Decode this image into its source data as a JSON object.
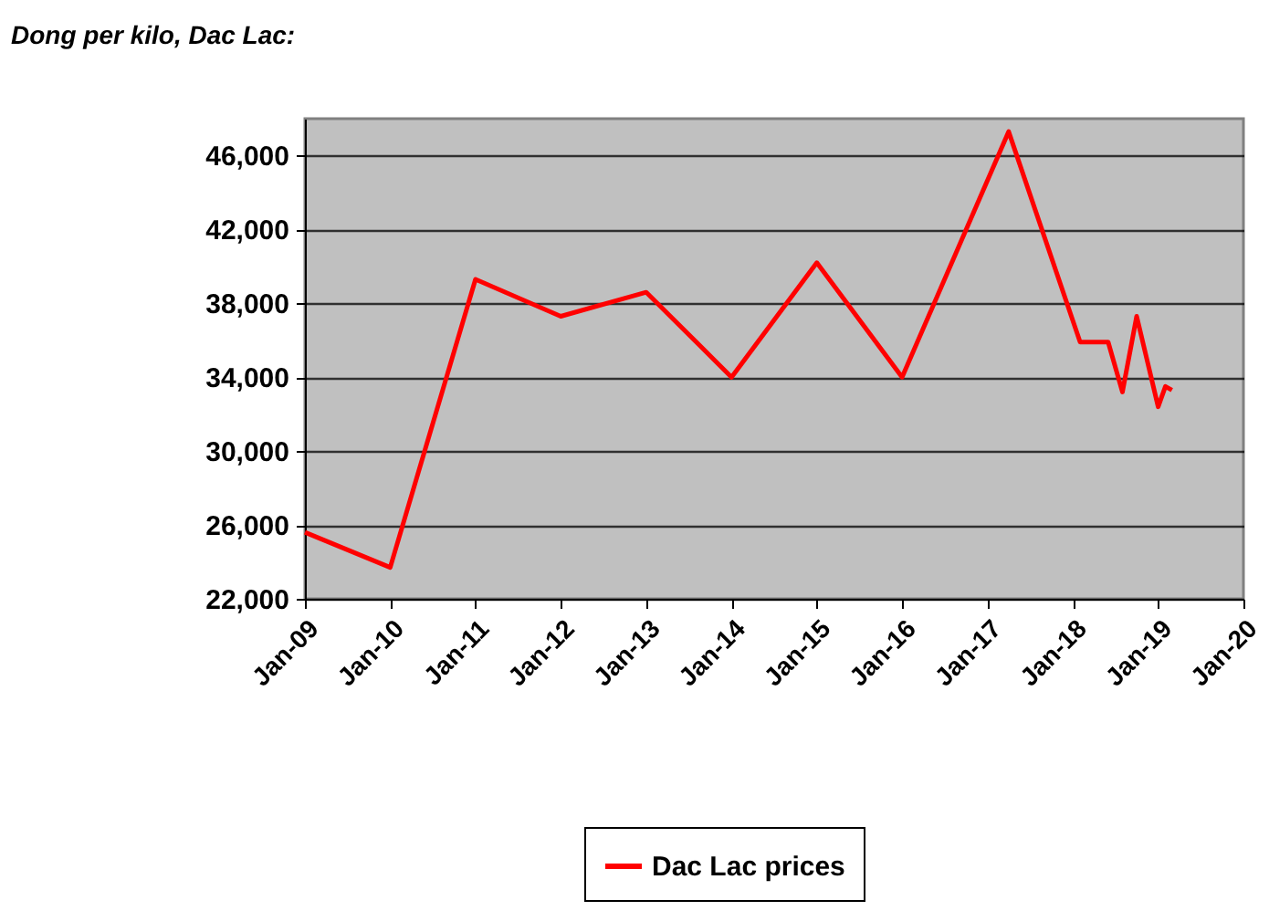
{
  "chart_data": {
    "type": "line",
    "title": "Dong per kilo, Dac Lac:",
    "x": [
      "2009-01",
      "2010-01",
      "2011-01",
      "2012-01",
      "2013-01",
      "2014-01",
      "2015-01",
      "2016-01",
      "2017-04",
      "2018-02",
      "2018-06",
      "2018-08",
      "2018-10",
      "2019-01",
      "2019-02",
      "2019-03"
    ],
    "series": [
      {
        "name": "Dac Lac prices",
        "color": "#ff0000",
        "values": [
          25600,
          23700,
          39300,
          37300,
          38600,
          34000,
          40200,
          34000,
          47300,
          35900,
          35900,
          33200,
          37300,
          32400,
          33500,
          33300
        ]
      }
    ],
    "xlim": [
      "2009-01",
      "2020-01"
    ],
    "xticks": [
      {
        "value": "2009-01",
        "label": "Jan-09"
      },
      {
        "value": "2010-01",
        "label": "Jan-10"
      },
      {
        "value": "2011-01",
        "label": "Jan-11"
      },
      {
        "value": "2012-01",
        "label": "Jan-12"
      },
      {
        "value": "2013-01",
        "label": "Jan-13"
      },
      {
        "value": "2014-01",
        "label": "Jan-14"
      },
      {
        "value": "2015-01",
        "label": "Jan-15"
      },
      {
        "value": "2016-01",
        "label": "Jan-16"
      },
      {
        "value": "2017-01",
        "label": "Jan-17"
      },
      {
        "value": "2018-01",
        "label": "Jan-18"
      },
      {
        "value": "2019-01",
        "label": "Jan-19"
      },
      {
        "value": "2020-01",
        "label": "Jan-20"
      }
    ],
    "ylim": [
      22000,
      48000
    ],
    "yticks": [
      {
        "value": 22000,
        "label": "22,000"
      },
      {
        "value": 26000,
        "label": "26,000"
      },
      {
        "value": 30000,
        "label": "30,000"
      },
      {
        "value": 34000,
        "label": "34,000"
      },
      {
        "value": 38000,
        "label": "38,000"
      },
      {
        "value": 42000,
        "label": "42,000"
      },
      {
        "value": 46000,
        "label": "46,000"
      }
    ],
    "grid": "y",
    "legend": "bottom",
    "marker": "none",
    "line_style": "solid"
  }
}
